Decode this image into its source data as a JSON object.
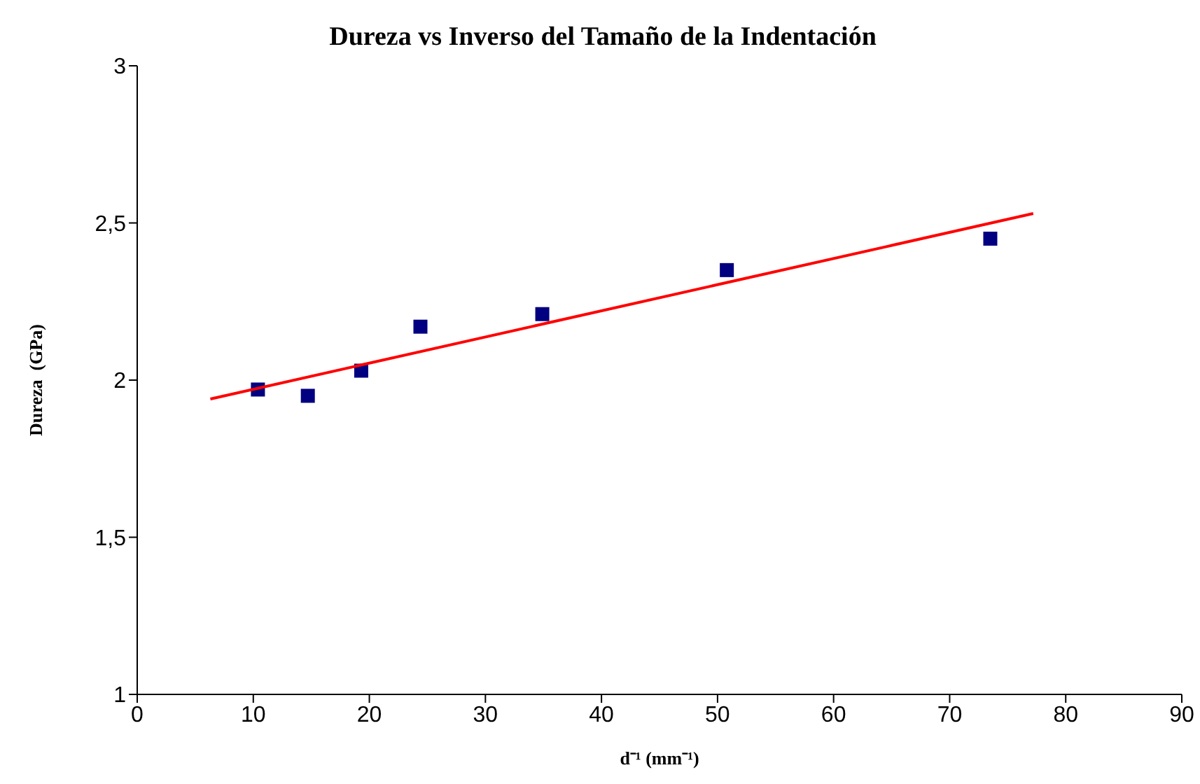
{
  "chart_data": {
    "type": "scatter",
    "title": "Dureza vs Inverso del Tamaño de la Indentación",
    "xlabel": "d⁻¹ (mm⁻¹)",
    "ylabel": "Dureza  (GPa)",
    "x": [
      10.4,
      14.7,
      19.3,
      24.4,
      34.9,
      50.8,
      73.5
    ],
    "series": [
      {
        "color": "#000080",
        "marker": "square",
        "values": [
          1.97,
          1.95,
          2.03,
          2.17,
          2.21,
          2.35,
          2.45
        ]
      },
      {
        "type": "line",
        "color": "#ff0000",
        "marker": "none",
        "x": [
          6.3,
          77.2
        ],
        "values": [
          1.94,
          2.53
        ]
      }
    ],
    "xlim": [
      0,
      90
    ],
    "xticks": [
      0,
      10,
      20,
      30,
      40,
      50,
      60,
      70,
      80,
      90
    ],
    "ylim": [
      1,
      3
    ],
    "yticks": [
      1,
      {
        "value": 1.5,
        "label": "1,5"
      },
      2,
      {
        "value": 2.5,
        "label": "2,5"
      },
      3
    ]
  }
}
